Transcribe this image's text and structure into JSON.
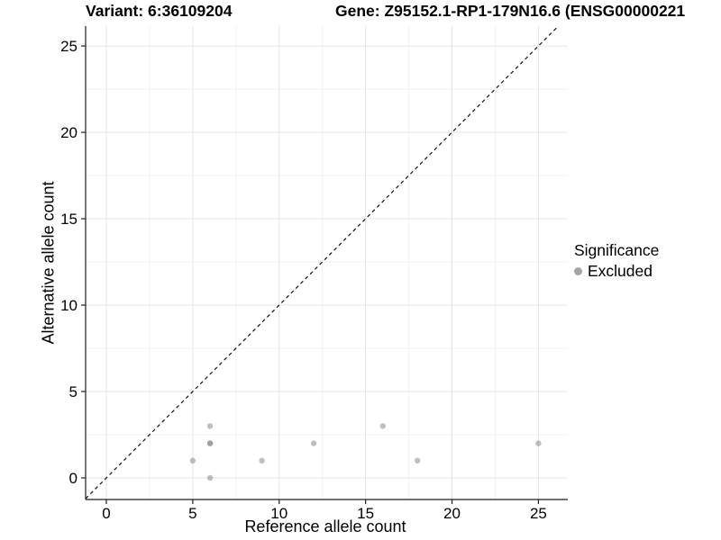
{
  "header": {
    "variant_title": "Variant: 6:36109204",
    "gene_title": "Gene: Z95152.1-RP1-179N16.6 (ENSG00000221"
  },
  "legend": {
    "title": "Significance",
    "items": [
      {
        "label": "Excluded",
        "swatch_color": "#a4a4a4"
      }
    ]
  },
  "chart_data": {
    "type": "scatter",
    "xlabel": "Reference allele count",
    "ylabel": "Alternative allele count",
    "x_ticks": [
      0,
      5,
      10,
      15,
      20,
      25
    ],
    "y_ticks": [
      0,
      5,
      10,
      15,
      20,
      25
    ],
    "x_minor": [
      2.5,
      7.5,
      12.5,
      17.5,
      22.5
    ],
    "y_minor": [
      2.5,
      7.5,
      12.5,
      17.5,
      22.5
    ],
    "xlim": [
      -1.2,
      26.7
    ],
    "ylim": [
      -1.25,
      26.15
    ],
    "grid": true,
    "legend_position": "right",
    "identity_line": {
      "equation": "y = x",
      "style": "dashed",
      "color": "#111111"
    },
    "series": [
      {
        "name": "Excluded",
        "color": "#7f7f7f",
        "alpha": 0.5,
        "points": [
          [
            5,
            1
          ],
          [
            6,
            0
          ],
          [
            6,
            2
          ],
          [
            6,
            2
          ],
          [
            6,
            3
          ],
          [
            9,
            1
          ],
          [
            12,
            2
          ],
          [
            16,
            3
          ],
          [
            18,
            1
          ],
          [
            25,
            2
          ]
        ]
      }
    ],
    "colors": {
      "grid_major": "#e4e4e4",
      "grid_minor": "#f1f1f1",
      "axis": "#1f1f1f",
      "tick": "#1f1f1f"
    }
  }
}
